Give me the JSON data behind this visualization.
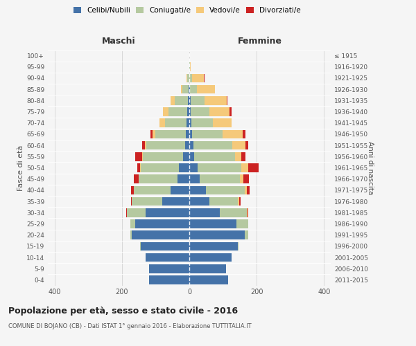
{
  "age_groups": [
    "0-4",
    "5-9",
    "10-14",
    "15-19",
    "20-24",
    "25-29",
    "30-34",
    "35-39",
    "40-44",
    "45-49",
    "50-54",
    "55-59",
    "60-64",
    "65-69",
    "70-74",
    "75-79",
    "80-84",
    "85-89",
    "90-94",
    "95-99",
    "100+"
  ],
  "birth_years": [
    "2011-2015",
    "2006-2010",
    "2001-2005",
    "1996-2000",
    "1991-1995",
    "1986-1990",
    "1981-1985",
    "1976-1980",
    "1971-1975",
    "1966-1970",
    "1961-1965",
    "1956-1960",
    "1951-1955",
    "1946-1950",
    "1941-1945",
    "1936-1940",
    "1931-1935",
    "1926-1930",
    "1921-1925",
    "1916-1920",
    "≤ 1915"
  ],
  "male": {
    "celibi": [
      120,
      120,
      130,
      145,
      170,
      160,
      130,
      80,
      55,
      35,
      30,
      18,
      12,
      10,
      8,
      6,
      4,
      2,
      1,
      0,
      0
    ],
    "coniugati": [
      0,
      0,
      0,
      2,
      5,
      15,
      55,
      90,
      110,
      115,
      115,
      120,
      115,
      90,
      65,
      55,
      40,
      18,
      5,
      0,
      0
    ],
    "vedovi": [
      0,
      0,
      0,
      0,
      0,
      0,
      1,
      0,
      0,
      0,
      1,
      3,
      5,
      10,
      15,
      18,
      12,
      5,
      2,
      0,
      0
    ],
    "divorziati": [
      0,
      0,
      0,
      0,
      0,
      0,
      2,
      3,
      8,
      15,
      8,
      20,
      8,
      5,
      0,
      0,
      0,
      0,
      1,
      0,
      0
    ]
  },
  "female": {
    "nubili": [
      115,
      110,
      125,
      145,
      165,
      140,
      90,
      60,
      50,
      30,
      25,
      15,
      12,
      8,
      6,
      5,
      4,
      2,
      1,
      0,
      0
    ],
    "coniugate": [
      0,
      0,
      0,
      2,
      10,
      35,
      80,
      85,
      115,
      120,
      130,
      120,
      115,
      90,
      65,
      55,
      42,
      20,
      8,
      2,
      0
    ],
    "vedove": [
      0,
      0,
      0,
      0,
      0,
      0,
      2,
      3,
      5,
      10,
      20,
      20,
      40,
      60,
      55,
      60,
      65,
      55,
      35,
      2,
      0
    ],
    "divorziate": [
      0,
      0,
      0,
      0,
      0,
      0,
      3,
      5,
      10,
      18,
      30,
      12,
      8,
      8,
      0,
      5,
      3,
      0,
      2,
      0,
      0
    ]
  },
  "colors": {
    "celibi": "#4472a8",
    "coniugati": "#b5c9a0",
    "vedovi": "#f5c97a",
    "divorziati": "#cc2222"
  },
  "xlim": 420,
  "title": "Popolazione per età, sesso e stato civile - 2016",
  "subtitle": "COMUNE DI BOJANO (CB) - Dati ISTAT 1° gennaio 2016 - Elaborazione TUTTITALIA.IT",
  "ylabel_left": "Fasce di età",
  "ylabel_right": "Anni di nascita",
  "xlabel_left": "Maschi",
  "xlabel_right": "Femmine",
  "bg_color": "#f5f5f5",
  "grid_color": "#cccccc"
}
